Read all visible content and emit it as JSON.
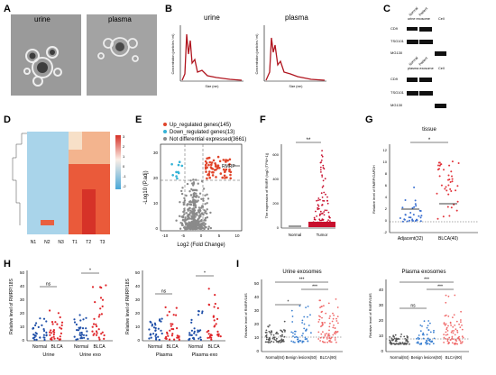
{
  "panels": {
    "A": {
      "letter": "A",
      "left_label": "urine",
      "right_label": "plasma"
    },
    "B": {
      "letter": "B",
      "left_title": "urine",
      "right_title": "plasma",
      "ylabel": "Concentration (particles / ml)",
      "xlabel": "Size (nm)"
    },
    "C": {
      "letter": "C",
      "top": {
        "lanes": [
          "Normal",
          "Patient"
        ],
        "group": "urine exosome",
        "extra": "Cell",
        "rows": [
          "CD9",
          "TSG101",
          "MG130"
        ]
      },
      "bottom": {
        "lanes": [
          "Normal",
          "Patient"
        ],
        "group": "plasma exosome",
        "extra": "Cell",
        "rows": [
          "CD9",
          "TSG101",
          "MG130"
        ]
      }
    },
    "D": {
      "letter": "D",
      "columns": [
        "N1",
        "N2",
        "N3",
        "T1",
        "T2",
        "T3"
      ],
      "scale": [
        "3",
        "2",
        "1",
        "0",
        "-1",
        "-2"
      ]
    },
    "E": {
      "letter": "E",
      "legend": [
        "Up_regulated genes(145)",
        "Down_regulated genes(13)",
        "Not differential expressed(3661)"
      ],
      "xlabel": "Log2 (Fold Change)",
      "ylabel": "-Log10 (P.adj)",
      "highlight": "RMRP",
      "xticks": [
        "-10",
        "-5",
        "0",
        "5",
        "10"
      ],
      "yticks": [
        "0",
        "10",
        "20",
        "30"
      ],
      "colors": {
        "up": "#e0442a",
        "down": "#35b3d6",
        "ns": "#8a8a8a"
      }
    },
    "F": {
      "letter": "F",
      "ylabel": "The expression of RMRP (log2 (TPM+1))",
      "categories": [
        "Normal",
        "Tumor"
      ],
      "sig": "**",
      "yticks": [
        "0",
        "200",
        "400",
        "600"
      ]
    },
    "G": {
      "letter": "G",
      "title": "tissue",
      "ylabel": "Relative level of RMRP/GAPDH",
      "categories": [
        "Adjacent(32)",
        "BLCA(40)"
      ],
      "sig": "*",
      "yticks": [
        "-2",
        "0",
        "2",
        "4",
        "6",
        "8",
        "10",
        "12"
      ]
    },
    "H": {
      "letter": "H",
      "ylabel": "Relative level of RMRP/18S",
      "left": {
        "categories": [
          "Normal",
          "BLCA",
          "Normal",
          "BLCA"
        ],
        "groups": [
          "Urine",
          "Urine exo"
        ],
        "sig": [
          "ns",
          "*"
        ],
        "yticks": [
          "0",
          "10",
          "20",
          "30",
          "40",
          "50"
        ]
      },
      "right": {
        "categories": [
          "Normal",
          "BLCA",
          "Normal",
          "BLCA"
        ],
        "groups": [
          "Plasma",
          "Plasma exo"
        ],
        "sig": [
          "ns",
          "*"
        ],
        "yticks": [
          "0",
          "10",
          "20",
          "30",
          "40",
          "50"
        ]
      },
      "colors": {
        "normal": "#1f4fa8",
        "blca": "#e0262b"
      }
    },
    "I": {
      "letter": "I",
      "ylabel": "Relative level of RMRP/18S",
      "left": {
        "title": "Urine exosomes",
        "categories": [
          "Normal(84)",
          "Benign lesions(50)",
          "BLCA(90)"
        ],
        "sig": [
          "*",
          "***",
          "***"
        ],
        "yticks": [
          "0",
          "10",
          "20",
          "30",
          "40",
          "50"
        ]
      },
      "right": {
        "title": "Plasma exosomes",
        "categories": [
          "Normal(84)",
          "Benign lesions(50)",
          "BLCA(90)"
        ],
        "sig": [
          "ns",
          "***",
          "***"
        ],
        "yticks": [
          "0",
          "10",
          "20",
          "30",
          "40"
        ]
      },
      "colors": {
        "normal": "#555555",
        "benign": "#3a7fd0",
        "blca": "#f06a6a"
      }
    }
  }
}
